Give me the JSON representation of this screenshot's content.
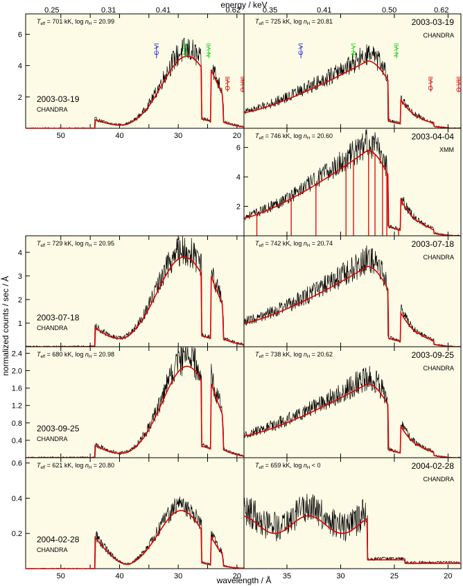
{
  "figure": {
    "ylabel": "normalized counts / sec / Å",
    "xlabel_left": "wavelength / Å",
    "xlabel_right": "",
    "top_label": "energy / keV",
    "colors": {
      "panel_bg": "#fdfbe6",
      "data": "#000000",
      "model": "#e00000",
      "line_c": "#2222cc",
      "line_n": "#22cc22",
      "line_o": "#e00000"
    }
  },
  "chart_data": [
    {
      "type": "line",
      "panel": "left-1",
      "title": "T_eff = 701 kK, log n_H = 20.99",
      "teff_label": "701 kK",
      "nh_label": "20.99",
      "date": "2003-03-19",
      "instrument": "CHANDRA",
      "xlim": [
        56,
        18.8
      ],
      "ylim": [
        0,
        7.3
      ],
      "yticks": [
        2,
        4,
        6
      ],
      "xticks": [
        50,
        45,
        40,
        35,
        30,
        25,
        20
      ],
      "xticklabels": [
        "50",
        "",
        "40",
        "",
        "30",
        "",
        "20"
      ],
      "top_ticks": [
        "0.25",
        "0.31",
        "0.41",
        "0.62"
      ],
      "shape": {
        "peak": 4.6,
        "pk": 28.5,
        "w": 6.0,
        "bump_x": 44.2,
        "bump": 0.55
      },
      "lines": [
        {
          "label": "C VI",
          "x": 33.7,
          "color": "c"
        },
        {
          "label": "N VI",
          "x": 28.8,
          "color": "n"
        },
        {
          "label": "N VII",
          "x": 24.8,
          "color": "n"
        },
        {
          "label": "O VII",
          "x": 21.6,
          "color": "o"
        },
        {
          "label": "O VIII",
          "x": 19.0,
          "color": "o"
        }
      ]
    },
    {
      "type": "line",
      "panel": "right-1",
      "title": "T_eff = 725 kK, log n_H = 20.81",
      "teff_label": "725 kK",
      "nh_label": "20.81",
      "date": "2003-03-19",
      "instrument": "CHANDRA",
      "xlim": [
        39,
        18.8
      ],
      "ylim": [
        0,
        7.3
      ],
      "yticks": [],
      "xticks": [
        35,
        30,
        25,
        20
      ],
      "xticklabels": [
        "",
        "",
        "",
        ""
      ],
      "top_ticks": [
        "0.35",
        "0.41",
        "0.50",
        "0.62"
      ],
      "shape": {
        "peak": 4.3,
        "pk": 27.5,
        "w": 9.0,
        "base": 1.0
      },
      "lines": [
        {
          "label": "C VI",
          "x": 33.7,
          "color": "c"
        },
        {
          "label": "N VI",
          "x": 28.8,
          "color": "n"
        },
        {
          "label": "N VII",
          "x": 24.8,
          "color": "n"
        },
        {
          "label": "O VII",
          "x": 21.6,
          "color": "o"
        },
        {
          "label": "O VIII",
          "x": 19.0,
          "color": "o"
        }
      ]
    },
    {
      "type": "line",
      "panel": "right-2",
      "title": "T_eff = 746 kK, log n_H = 20.60",
      "teff_label": "746 kK",
      "nh_label": "20.60",
      "date": "2003-04-04",
      "instrument": "XMM",
      "xlim": [
        39,
        18.8
      ],
      "ylim": [
        0,
        7.3
      ],
      "yticks": [
        2,
        4,
        6
      ],
      "xticks": [
        35,
        30,
        25,
        20
      ],
      "xticklabels": [
        "",
        "",
        "",
        ""
      ],
      "shape": {
        "peak": 5.8,
        "pk": 27.5,
        "w": 10.0,
        "base": 1.2,
        "xmm": true
      }
    },
    {
      "type": "line",
      "panel": "left-3",
      "title": "T_eff = 729 kK, log n_H = 20.95",
      "teff_label": "729 kK",
      "nh_label": "20.95",
      "date": "2003-07-18",
      "instrument": "CHANDRA",
      "xlim": [
        56,
        18.8
      ],
      "ylim": [
        0,
        4.7
      ],
      "yticks": [
        1,
        2,
        3,
        4
      ],
      "xticks": [
        50,
        45,
        40,
        35,
        30,
        25,
        20
      ],
      "xticklabels": [
        "",
        "",
        "",
        "",
        "",
        "",
        ""
      ],
      "shape": {
        "peak": 3.8,
        "pk": 29.0,
        "w": 6.5,
        "bump_x": 44.2,
        "bump": 0.8
      }
    },
    {
      "type": "line",
      "panel": "right-3",
      "title": "T_eff = 742 kK, log n_H = 20.74",
      "teff_label": "742 kK",
      "nh_label": "20.74",
      "date": "2003-07-18",
      "instrument": "CHANDRA",
      "xlim": [
        39,
        18.8
      ],
      "ylim": [
        0,
        4.7
      ],
      "yticks": [],
      "xticks": [
        35,
        30,
        25,
        20
      ],
      "xticklabels": [
        "",
        "",
        "",
        ""
      ],
      "shape": {
        "peak": 3.4,
        "pk": 27.5,
        "w": 9.0,
        "base": 1.0
      }
    },
    {
      "type": "line",
      "panel": "left-4",
      "title": "T_eff = 680 kK, log n_H = 20.98",
      "teff_label": "680 kK",
      "nh_label": "20.98",
      "date": "2003-09-25",
      "instrument": "CHANDRA",
      "xlim": [
        56,
        18.8
      ],
      "ylim": [
        0,
        2.55
      ],
      "yticks": [
        0.4,
        0.8,
        1.2,
        1.6,
        2.0,
        2.4
      ],
      "yticklabels": [
        "0.4",
        "0.8",
        "1.2",
        "1.6",
        "2.0",
        "2.4"
      ],
      "xticks": [
        50,
        45,
        40,
        35,
        30,
        25,
        20
      ],
      "xticklabels": [
        "",
        "",
        "",
        "",
        "",
        "",
        ""
      ],
      "shape": {
        "peak": 2.1,
        "pk": 28.5,
        "w": 6.0,
        "bump_x": 44.2,
        "bump": 0.28
      }
    },
    {
      "type": "line",
      "panel": "right-4",
      "title": "T_eff = 738 kK, log n_H = 20.62",
      "teff_label": "738 kK",
      "nh_label": "20.62",
      "date": "2003-09-25",
      "instrument": "CHANDRA",
      "xlim": [
        39,
        18.8
      ],
      "ylim": [
        0,
        2.55
      ],
      "yticks": [],
      "xticks": [
        35,
        30,
        25,
        20
      ],
      "xticklabels": [
        "",
        "",
        "",
        ""
      ],
      "shape": {
        "peak": 1.7,
        "pk": 27.5,
        "w": 9.0,
        "base": 0.5
      }
    },
    {
      "type": "line",
      "panel": "left-5",
      "title": "T_eff = 621 kK, log n_H = 20.80",
      "teff_label": "621 kK",
      "nh_label": "20.80",
      "date": "2004-02-28",
      "instrument": "CHANDRA",
      "xlim": [
        56,
        18.8
      ],
      "ylim": [
        0,
        0.63
      ],
      "yticks": [
        0.2,
        0.4,
        0.6
      ],
      "yticklabels": [
        "0.2",
        "0.4",
        "0.6"
      ],
      "xticks": [
        50,
        45,
        40,
        35,
        30,
        25,
        20
      ],
      "xticklabels": [
        "50",
        "",
        "40",
        "",
        "30",
        "",
        "20"
      ],
      "shape": {
        "peak": 0.33,
        "pk": 29.5,
        "w": 5.5,
        "bump_x": 44.2,
        "bump": 0.18
      }
    },
    {
      "type": "line",
      "panel": "right-5",
      "title": "T_eff = 659 kK, log n_H < 0",
      "teff_label": "659 kK",
      "nh_label": "< 0",
      "date": "2004-02-28",
      "instrument": "CHANDRA",
      "xlim": [
        39,
        18.8
      ],
      "ylim": [
        0,
        0.63
      ],
      "yticks": [],
      "xticks": [
        35,
        30,
        25,
        20
      ],
      "xticklabels": [
        "35",
        "30",
        "25",
        "20"
      ],
      "shape": {
        "peak": 0.3,
        "pk": 30.0,
        "w": 9.0,
        "base": 0.25,
        "flat": true
      }
    }
  ]
}
